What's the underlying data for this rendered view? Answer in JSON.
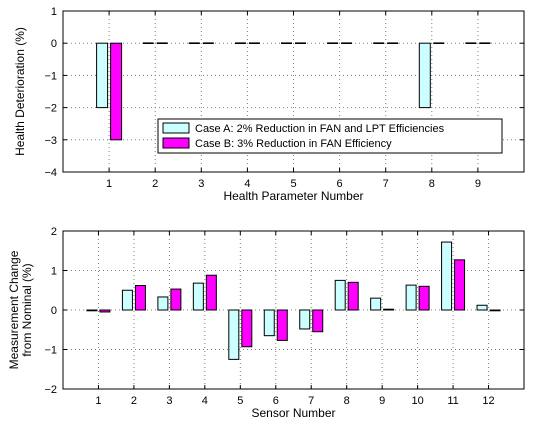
{
  "colors": {
    "case_a": "#ccffff",
    "case_b": "#ff00ff",
    "edge": "#000000",
    "grid": "#808080"
  },
  "chart_data": [
    {
      "type": "bar",
      "x": [
        1,
        2,
        3,
        4,
        5,
        6,
        7,
        8,
        9
      ],
      "xlabel": "Health Parameter Number",
      "ylabel": "Health Deterioration (%)",
      "ylim": [
        -4,
        1
      ],
      "yticks": [
        -4,
        -3,
        -2,
        -1,
        0,
        1
      ],
      "grid": true,
      "legend": {
        "placement": "bottom-right",
        "entries": [
          "Case A:  2% Reduction in FAN and LPT Efficiencies",
          "Case B:  3% Reduction in FAN Efficiency"
        ]
      },
      "series": [
        {
          "name": "Case A:  2% Reduction in FAN and LPT Efficiencies",
          "values": [
            -2,
            0,
            0,
            0,
            0,
            0,
            0,
            -2,
            0
          ]
        },
        {
          "name": "Case B:  3% Reduction in FAN Efficiency",
          "values": [
            -3,
            0,
            0,
            0,
            0,
            0,
            0,
            0,
            0
          ]
        }
      ]
    },
    {
      "type": "bar",
      "x": [
        1,
        2,
        3,
        4,
        5,
        6,
        7,
        8,
        9,
        10,
        11,
        12
      ],
      "xlabel": "Sensor Number",
      "ylabel": [
        "Measurement Change",
        "from Nominal (%)"
      ],
      "ylim": [
        -2,
        2
      ],
      "yticks": [
        -2,
        -1,
        0,
        1,
        2
      ],
      "grid": true,
      "series": [
        {
          "name": "Case A:  2% Reduction in FAN and LPT Efficiencies",
          "values": [
            -0.02,
            0.5,
            0.33,
            0.68,
            -1.25,
            -0.65,
            -0.48,
            0.75,
            0.3,
            0.63,
            1.72,
            0.12
          ]
        },
        {
          "name": "Case B:  3% Reduction in FAN Efficiency",
          "values": [
            -0.05,
            0.62,
            0.53,
            0.88,
            -0.93,
            -0.77,
            -0.55,
            0.7,
            0.02,
            0.6,
            1.27,
            -0.02
          ]
        }
      ]
    }
  ]
}
